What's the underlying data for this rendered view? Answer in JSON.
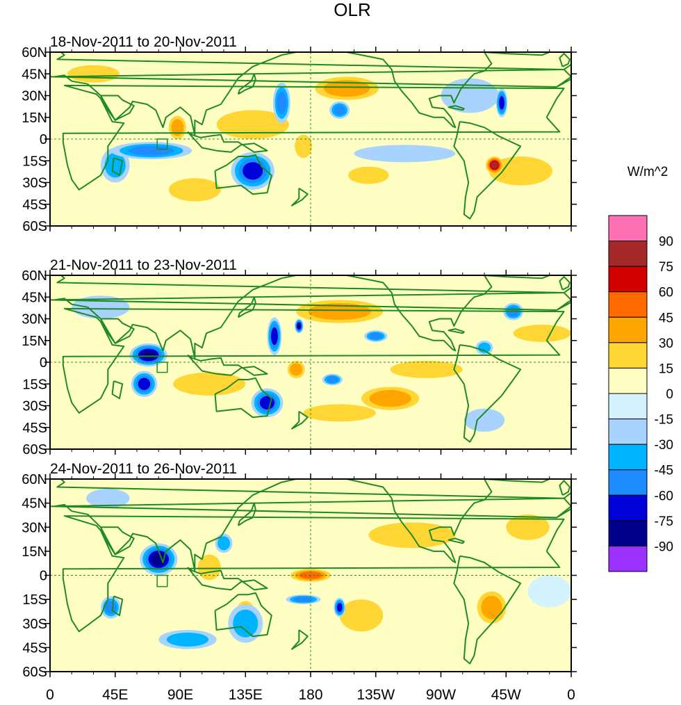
{
  "chart_data": {
    "type": "heatmap",
    "title": "OLR",
    "units_label": "W/m^2",
    "lat_ticks": [
      "60N",
      "45N",
      "30N",
      "15N",
      "0",
      "15S",
      "30S",
      "45S",
      "60S"
    ],
    "lat_values": [
      60,
      45,
      30,
      15,
      0,
      -15,
      -30,
      -45,
      -60
    ],
    "lon_ticks": [
      "0",
      "45E",
      "90E",
      "135E",
      "180",
      "135W",
      "90W",
      "45W",
      "0"
    ],
    "lon_values": [
      0,
      45,
      90,
      135,
      180,
      225,
      270,
      315,
      360
    ],
    "lon_range": [
      0,
      360
    ],
    "lat_range": [
      -60,
      60
    ],
    "colorbar": {
      "levels": [
        "90",
        "75",
        "60",
        "45",
        "30",
        "15",
        "0",
        "-15",
        "-30",
        "-45",
        "-60",
        "-75",
        "-90"
      ],
      "colors": [
        "#ff6fb4",
        "#a62929",
        "#d40000",
        "#ff6a00",
        "#ffa500",
        "#ffd633",
        "#ffffc4",
        "#d4f3ff",
        "#a8d3ff",
        "#00b4ff",
        "#1e8cff",
        "#0000d8",
        "#00008c",
        "#9b30ff"
      ]
    },
    "panels": [
      {
        "label": "18-Nov-2011 to 20-Nov-2011",
        "anomalies": [
          {
            "lon": 70,
            "lat": -8,
            "v": -55,
            "rx": 28,
            "ry": 6
          },
          {
            "lon": 45,
            "lat": -18,
            "v": -40,
            "rx": 10,
            "ry": 12
          },
          {
            "lon": 140,
            "lat": -22,
            "v": -65,
            "rx": 15,
            "ry": 13
          },
          {
            "lon": 160,
            "lat": 25,
            "v": -55,
            "rx": 6,
            "ry": 14
          },
          {
            "lon": 200,
            "lat": 20,
            "v": -60,
            "rx": 7,
            "ry": 6
          },
          {
            "lon": 312,
            "lat": 25,
            "v": -75,
            "rx": 4,
            "ry": 10
          },
          {
            "lon": 307,
            "lat": -18,
            "v": 85,
            "rx": 6,
            "ry": 6
          },
          {
            "lon": 88,
            "lat": 8,
            "v": 45,
            "rx": 6,
            "ry": 8
          },
          {
            "lon": 205,
            "lat": 35,
            "v": 38,
            "rx": 22,
            "ry": 8
          },
          {
            "lon": 140,
            "lat": 10,
            "v": 30,
            "rx": 25,
            "ry": 10
          },
          {
            "lon": 325,
            "lat": -22,
            "v": 25,
            "rx": 22,
            "ry": 10
          },
          {
            "lon": 220,
            "lat": -25,
            "v": 25,
            "rx": 14,
            "ry": 6
          },
          {
            "lon": 290,
            "lat": 30,
            "v": -20,
            "rx": 20,
            "ry": 12
          },
          {
            "lon": 245,
            "lat": -10,
            "v": -20,
            "rx": 35,
            "ry": 6
          },
          {
            "lon": 100,
            "lat": -35,
            "v": 20,
            "rx": 18,
            "ry": 8
          },
          {
            "lon": 175,
            "lat": -5,
            "v": 28,
            "rx": 6,
            "ry": 8
          },
          {
            "lon": 30,
            "lat": 45,
            "v": 20,
            "rx": 18,
            "ry": 6
          }
        ]
      },
      {
        "label": "21-Nov-2011 to 23-Nov-2011",
        "anomalies": [
          {
            "lon": 68,
            "lat": 5,
            "v": -85,
            "rx": 13,
            "ry": 8
          },
          {
            "lon": 65,
            "lat": -15,
            "v": -65,
            "rx": 9,
            "ry": 9
          },
          {
            "lon": 155,
            "lat": 18,
            "v": -65,
            "rx": 5,
            "ry": 13
          },
          {
            "lon": 172,
            "lat": 25,
            "v": -80,
            "rx": 3,
            "ry": 5
          },
          {
            "lon": 150,
            "lat": -28,
            "v": -75,
            "rx": 11,
            "ry": 10
          },
          {
            "lon": 195,
            "lat": -12,
            "v": -55,
            "rx": 7,
            "ry": 4
          },
          {
            "lon": 225,
            "lat": 18,
            "v": -50,
            "rx": 8,
            "ry": 4
          },
          {
            "lon": 300,
            "lat": 10,
            "v": -45,
            "rx": 6,
            "ry": 5
          },
          {
            "lon": 320,
            "lat": 35,
            "v": -50,
            "rx": 7,
            "ry": 6
          },
          {
            "lon": 235,
            "lat": -25,
            "v": 40,
            "rx": 20,
            "ry": 8
          },
          {
            "lon": 200,
            "lat": 35,
            "v": 35,
            "rx": 30,
            "ry": 8
          },
          {
            "lon": 170,
            "lat": -5,
            "v": 45,
            "rx": 6,
            "ry": 6
          },
          {
            "lon": 110,
            "lat": -15,
            "v": 25,
            "rx": 25,
            "ry": 8
          },
          {
            "lon": 35,
            "lat": 38,
            "v": -20,
            "rx": 20,
            "ry": 8
          },
          {
            "lon": 300,
            "lat": -40,
            "v": -25,
            "rx": 14,
            "ry": 8
          },
          {
            "lon": 340,
            "lat": 20,
            "v": 25,
            "rx": 20,
            "ry": 6
          },
          {
            "lon": 260,
            "lat": -5,
            "v": 20,
            "rx": 25,
            "ry": 6
          },
          {
            "lon": 200,
            "lat": -35,
            "v": 18,
            "rx": 25,
            "ry": 6
          }
        ]
      },
      {
        "label": "24-Nov-2011 to 26-Nov-2011",
        "anomalies": [
          {
            "lon": 75,
            "lat": 10,
            "v": -90,
            "rx": 13,
            "ry": 10
          },
          {
            "lon": 42,
            "lat": -20,
            "v": -60,
            "rx": 7,
            "ry": 7
          },
          {
            "lon": 200,
            "lat": -20,
            "v": -70,
            "rx": 4,
            "ry": 6
          },
          {
            "lon": 175,
            "lat": -15,
            "v": -60,
            "rx": 12,
            "ry": 3
          },
          {
            "lon": 95,
            "lat": -40,
            "v": -45,
            "rx": 20,
            "ry": 6
          },
          {
            "lon": 135,
            "lat": -30,
            "v": -40,
            "rx": 12,
            "ry": 12
          },
          {
            "lon": 120,
            "lat": 20,
            "v": -40,
            "rx": 6,
            "ry": 6
          },
          {
            "lon": 180,
            "lat": 0,
            "v": 55,
            "rx": 14,
            "ry": 4
          },
          {
            "lon": 305,
            "lat": -20,
            "v": 40,
            "rx": 10,
            "ry": 10
          },
          {
            "lon": 110,
            "lat": 5,
            "v": 30,
            "rx": 8,
            "ry": 8
          },
          {
            "lon": 135,
            "lat": -22,
            "v": 35,
            "rx": 6,
            "ry": 6
          },
          {
            "lon": 215,
            "lat": -25,
            "v": 25,
            "rx": 15,
            "ry": 10
          },
          {
            "lon": 250,
            "lat": 25,
            "v": 20,
            "rx": 30,
            "ry": 8
          },
          {
            "lon": 330,
            "lat": 30,
            "v": 25,
            "rx": 15,
            "ry": 8
          },
          {
            "lon": 345,
            "lat": -10,
            "v": -15,
            "rx": 15,
            "ry": 10
          },
          {
            "lon": 40,
            "lat": 48,
            "v": -25,
            "rx": 15,
            "ry": 6
          }
        ]
      }
    ]
  }
}
